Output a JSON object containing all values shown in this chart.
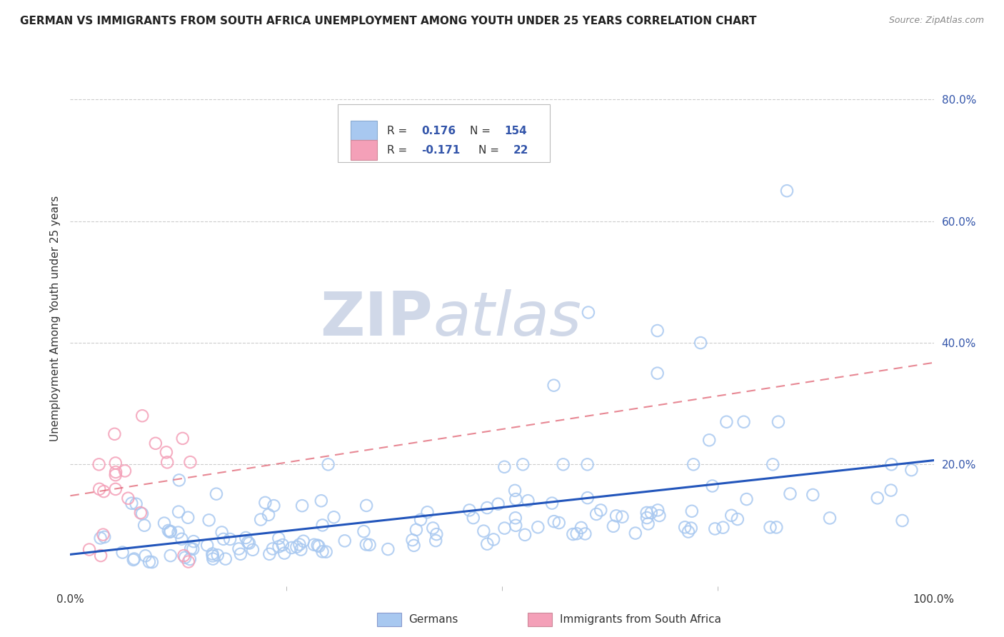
{
  "title": "GERMAN VS IMMIGRANTS FROM SOUTH AFRICA UNEMPLOYMENT AMONG YOUTH UNDER 25 YEARS CORRELATION CHART",
  "source": "Source: ZipAtlas.com",
  "ylabel": "Unemployment Among Youth under 25 years",
  "legend_label_1": "Germans",
  "legend_label_2": "Immigrants from South Africa",
  "R1": 0.176,
  "N1": 154,
  "R2": -0.171,
  "N2": 22,
  "blue_scatter_color": "#A8C8F0",
  "pink_scatter_color": "#F4A0B8",
  "blue_line_color": "#2255BB",
  "pink_line_color": "#E06070",
  "text_color": "#3355AA",
  "axis_label_color": "#333333",
  "grid_color": "#cccccc",
  "legend_text_color": "#3355AA",
  "watermark_color": "#d0d8e8",
  "background_color": "#ffffff",
  "xlim": [
    0.0,
    1.0
  ],
  "ylim": [
    0.0,
    0.88
  ],
  "ytick_vals": [
    0.2,
    0.4,
    0.6,
    0.8
  ],
  "ytick_labels": [
    "20.0%",
    "40.0%",
    "60.0%",
    "80.0%"
  ],
  "xtick_vals": [
    0.0,
    1.0
  ],
  "xtick_labels": [
    "0.0%",
    "100.0%"
  ]
}
